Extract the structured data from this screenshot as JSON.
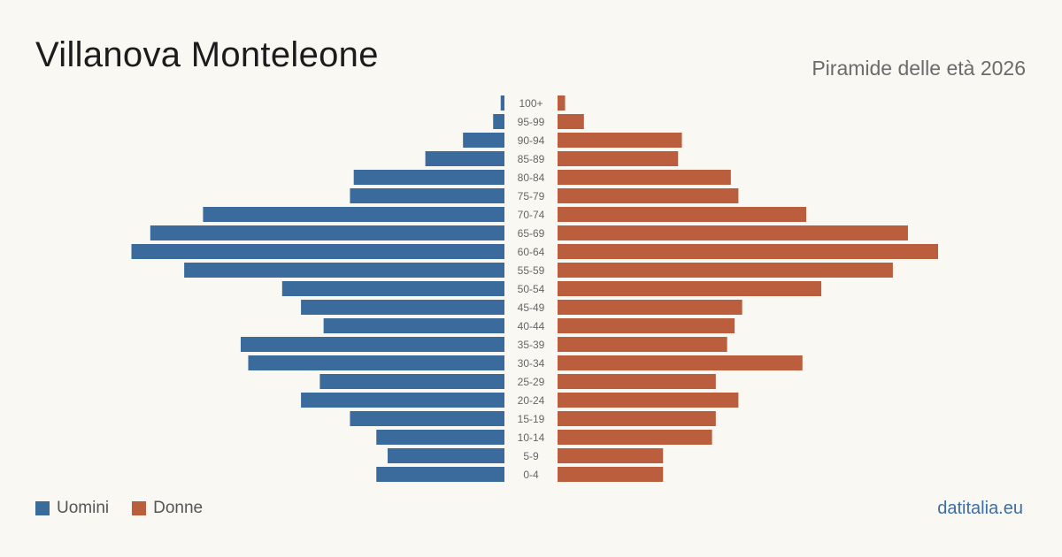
{
  "header": {
    "title": "Villanova Monteleone",
    "subtitle": "Piramide delle età 2026"
  },
  "legend": {
    "men_label": "Uomini",
    "women_label": "Donne"
  },
  "brand": "datitalia.eu",
  "colors": {
    "men": "#3a6b9c",
    "women": "#bb5e3d"
  },
  "chart_data": {
    "type": "bar",
    "orientation": "horizontal-pyramid",
    "categories": [
      "100+",
      "95-99",
      "90-94",
      "85-89",
      "80-84",
      "75-79",
      "70-74",
      "65-69",
      "60-64",
      "55-59",
      "50-54",
      "45-49",
      "40-44",
      "35-39",
      "30-34",
      "25-29",
      "20-24",
      "15-19",
      "10-14",
      "5-9",
      "0-4"
    ],
    "series": [
      {
        "name": "Uomini",
        "values": [
          1,
          3,
          11,
          21,
          40,
          41,
          80,
          94,
          99,
          85,
          59,
          54,
          48,
          70,
          68,
          49,
          54,
          41,
          34,
          31,
          34
        ]
      },
      {
        "name": "Donne",
        "values": [
          2,
          7,
          33,
          32,
          46,
          48,
          66,
          93,
          101,
          89,
          70,
          49,
          47,
          45,
          65,
          42,
          48,
          42,
          41,
          28,
          28
        ]
      }
    ]
  }
}
